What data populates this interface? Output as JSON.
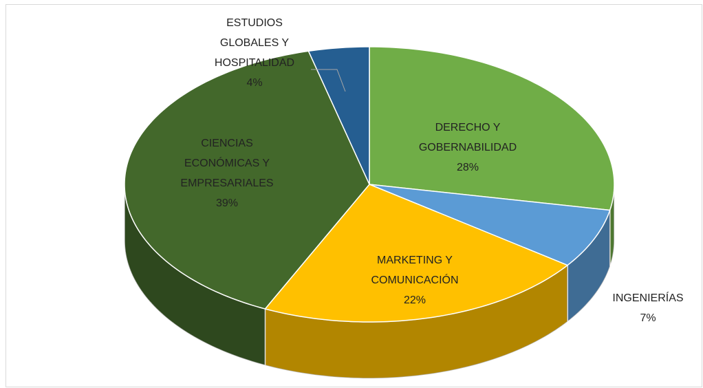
{
  "chart_data": {
    "type": "pie3d",
    "categories": [
      "DERECHO Y GOBERNABILIDAD",
      "INGENIERÍAS",
      "MARKETING Y COMUNICACIÓN",
      "CIENCIAS ECONÓMICAS Y EMPRESARIALES",
      "ESTUDIOS GLOBALES Y HOSPITALIDAD"
    ],
    "values": [
      28,
      7,
      22,
      39,
      4
    ],
    "value_labels": [
      "28%",
      "7%",
      "22%",
      "39%",
      "4%"
    ],
    "colors": [
      "#70ad47",
      "#5b9bd5",
      "#ffc000",
      "#43682b",
      "#255e91"
    ]
  }
}
